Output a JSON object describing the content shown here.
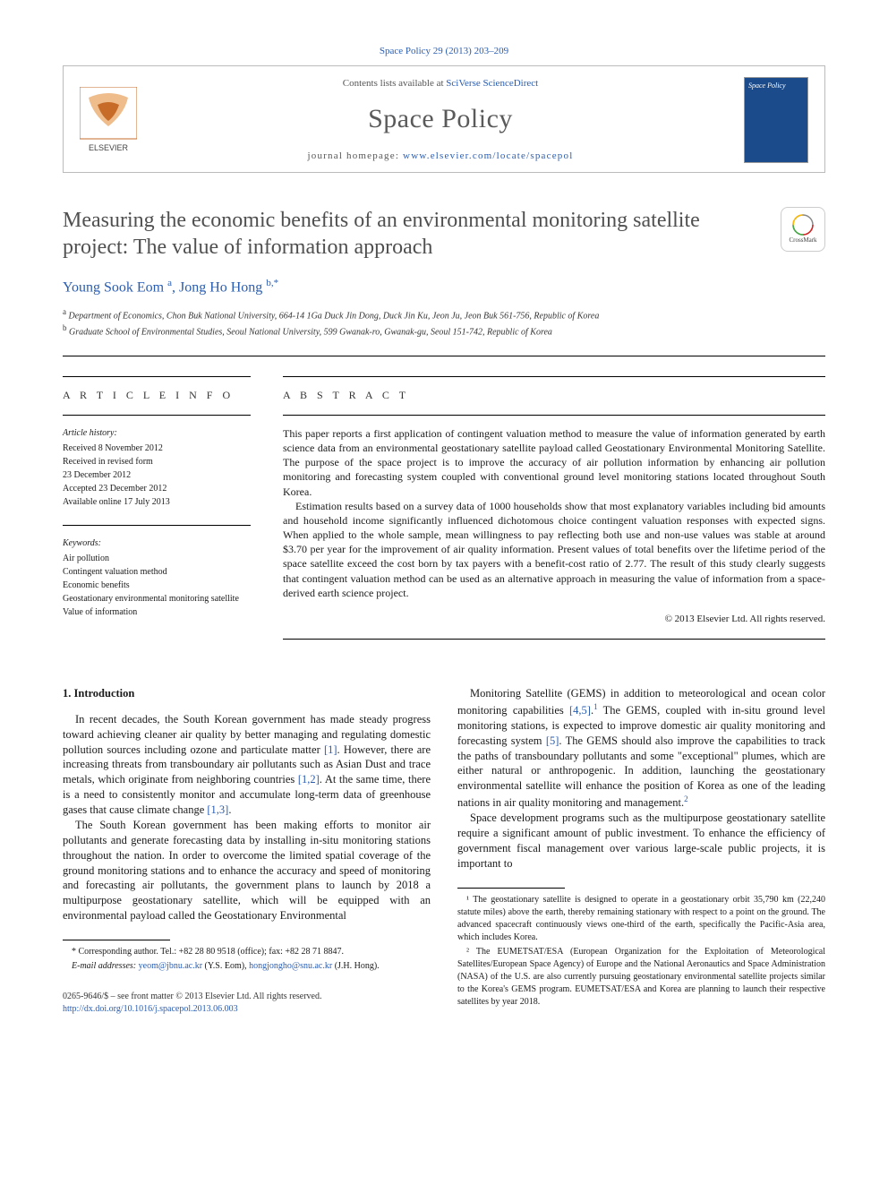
{
  "citation": "Space Policy 29 (2013) 203–209",
  "header": {
    "contents_prefix": "Contents lists available at ",
    "contents_link": "SciVerse ScienceDirect",
    "journal_name": "Space Policy",
    "homepage_prefix": "journal homepage: ",
    "homepage_url": "www.elsevier.com/locate/spacepol",
    "publisher": "ELSEVIER",
    "cover_label": "Space Policy"
  },
  "title": "Measuring the economic benefits of an environmental monitoring satellite project: The value of information approach",
  "crossmark_label": "CrossMark",
  "authors_html": "Young Sook Eom <sup>a</sup>, Jong Ho Hong <sup>b,*</sup>",
  "affiliations": {
    "a": "Department of Economics, Chon Buk National University, 664-14 1Ga Duck Jin Dong, Duck Jin Ku, Jeon Ju, Jeon Buk 561-756, Republic of Korea",
    "b": "Graduate School of Environmental Studies, Seoul National University, 599 Gwanak-ro, Gwanak-gu, Seoul 151-742, Republic of Korea"
  },
  "article_info": {
    "heading": "A R T I C L E   I N F O",
    "history_label": "Article history:",
    "history": [
      "Received 8 November 2012",
      "Received in revised form",
      "23 December 2012",
      "Accepted 23 December 2012",
      "Available online 17 July 2013"
    ],
    "keywords_label": "Keywords:",
    "keywords": [
      "Air pollution",
      "Contingent valuation method",
      "Economic benefits",
      "Geostationary environmental monitoring satellite",
      "Value of information"
    ]
  },
  "abstract": {
    "heading": "A B S T R A C T",
    "p1": "This paper reports a first application of contingent valuation method to measure the value of information generated by earth science data from an environmental geostationary satellite payload called Geostationary Environmental Monitoring Satellite. The purpose of the space project is to improve the accuracy of air pollution information by enhancing air pollution monitoring and forecasting system coupled with conventional ground level monitoring stations located throughout South Korea.",
    "p2": "Estimation results based on a survey data of 1000 households show that most explanatory variables including bid amounts and household income significantly influenced dichotomous choice contingent valuation responses with expected signs. When applied to the whole sample, mean willingness to pay reflecting both use and non-use values was stable at around $3.70 per year for the improvement of air quality information. Present values of total benefits over the lifetime period of the space satellite exceed the cost born by tax payers with a benefit-cost ratio of 2.77. The result of this study clearly suggests that contingent valuation method can be used as an alternative approach in measuring the value of information from a space-derived earth science project.",
    "copyright": "© 2013 Elsevier Ltd. All rights reserved."
  },
  "body": {
    "section1_heading": "1. Introduction",
    "p1": "In recent decades, the South Korean government has made steady progress toward achieving cleaner air quality by better managing and regulating domestic pollution sources including ozone and particulate matter [1]. However, there are increasing threats from transboundary air pollutants such as Asian Dust and trace metals, which originate from neighboring countries [1,2]. At the same time, there is a need to consistently monitor and accumulate long-term data of greenhouse gases that cause climate change [1,3].",
    "p2": "The South Korean government has been making efforts to monitor air pollutants and generate forecasting data by installing in-situ monitoring stations throughout the nation. In order to overcome the limited spatial coverage of the ground monitoring stations and to enhance the accuracy and speed of monitoring and forecasting air pollutants, the government plans to launch by 2018 a multipurpose geostationary satellite, which will be equipped with an environmental payload called the Geostationary Environmental",
    "p3": "Monitoring Satellite (GEMS) in addition to meteorological and ocean color monitoring capabilities [4,5].¹ The GEMS, coupled with in-situ ground level monitoring stations, is expected to improve domestic air quality monitoring and forecasting system [5]. The GEMS should also improve the capabilities to track the paths of transboundary pollutants and some \"exceptional\" plumes, which are either natural or anthropogenic. In addition, launching the geostationary environmental satellite will enhance the position of Korea as one of the leading nations in air quality monitoring and management.²",
    "p4": "Space development programs such as the multipurpose geostationary satellite require a significant amount of public investment. To enhance the efficiency of government fiscal management over various large-scale public projects, it is important to"
  },
  "left_footnotes": {
    "corr": "* Corresponding author. Tel.: +82 28 80 9518 (office); fax: +82 28 71 8847.",
    "email_label": "E-mail addresses:",
    "email1": "yeom@jbnu.ac.kr",
    "email1_who": "(Y.S. Eom),",
    "email2": "hongjongho@snu.ac.kr",
    "email2_who": "(J.H. Hong)."
  },
  "right_footnotes": {
    "fn1": "¹ The geostationary satellite is designed to operate in a geostationary orbit 35,790 km (22,240 statute miles) above the earth, thereby remaining stationary with respect to a point on the ground. The advanced spacecraft continuously views one-third of the earth, specifically the Pacific-Asia area, which includes Korea.",
    "fn2": "² The EUMETSAT/ESA (European Organization for the Exploitation of Meteorological Satellites/European Space Agency) of Europe and the National Aeronautics and Space Administration (NASA) of the U.S. are also currently pursuing geostationary environmental satellite projects similar to the Korea's GEMS program. EUMETSAT/ESA and Korea are planning to launch their respective satellites by year 2018."
  },
  "footer": {
    "issn": "0265-9646/$ – see front matter © 2013 Elsevier Ltd. All rights reserved.",
    "doi": "http://dx.doi.org/10.1016/j.spacepol.2013.06.003"
  },
  "colors": {
    "link": "#2a5db0",
    "title_gray": "#505050",
    "text": "#1a1a1a",
    "cover_bg": "#1b4b8a"
  },
  "typography": {
    "body_pt": 12.5,
    "title_pt": 24,
    "journal_pt": 30,
    "footnote_pt": 10
  }
}
